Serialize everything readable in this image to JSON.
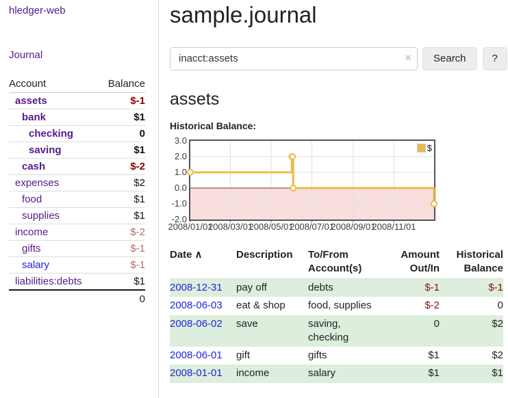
{
  "colors": {
    "link_purple": "#551a8b",
    "link_blue": "#2222dd",
    "negative_strong": "#8b0000",
    "negative_light": "#b56a6a",
    "stripe_green": "#ddeedd",
    "chart_gold": "#e8bc4a",
    "chart_negative_fill": "#f9dede",
    "chart_zero_line": "#992222",
    "chart_border": "#545454"
  },
  "sidebar": {
    "brand": "hledger-web",
    "journal_label": "Journal",
    "accounts_table": {
      "headers": [
        "Account",
        "Balance"
      ],
      "rows": [
        {
          "account": "assets",
          "depth": 1,
          "bold": true,
          "balance": "$-1",
          "balance_style": "neg-strong",
          "link_color": "purple"
        },
        {
          "account": "bank",
          "depth": 2,
          "bold": true,
          "balance": "$1",
          "balance_style": "pos",
          "link_color": "purple"
        },
        {
          "account": "checking",
          "depth": 3,
          "bold": true,
          "balance": "0",
          "balance_style": "pos",
          "link_color": "purple"
        },
        {
          "account": "saving",
          "depth": 3,
          "bold": true,
          "balance": "$1",
          "balance_style": "pos",
          "link_color": "purple"
        },
        {
          "account": "cash",
          "depth": 2,
          "bold": true,
          "balance": "$-2",
          "balance_style": "neg-strong",
          "link_color": "purple"
        },
        {
          "account": "expenses",
          "depth": 1,
          "bold": false,
          "balance": "$2",
          "balance_style": "pos",
          "link_color": "purple"
        },
        {
          "account": "food",
          "depth": 2,
          "bold": false,
          "balance": "$1",
          "balance_style": "pos",
          "link_color": "purple"
        },
        {
          "account": "supplies",
          "depth": 2,
          "bold": false,
          "balance": "$1",
          "balance_style": "pos",
          "link_color": "purple"
        },
        {
          "account": "income",
          "depth": 1,
          "bold": false,
          "balance": "$-2",
          "balance_style": "neg",
          "link_color": "purple"
        },
        {
          "account": "gifts",
          "depth": 2,
          "bold": false,
          "balance": "$-1",
          "balance_style": "neg",
          "link_color": "purple"
        },
        {
          "account": "salary",
          "depth": 2,
          "bold": false,
          "balance": "$-1",
          "balance_style": "neg",
          "link_color": "blue"
        },
        {
          "account": "liabilities:debts",
          "depth": 1,
          "bold": false,
          "balance": "$1",
          "balance_style": "pos",
          "link_color": "purple"
        }
      ],
      "total": "0"
    }
  },
  "main": {
    "title": "sample.journal",
    "search": {
      "value": "inacct:assets",
      "clear_icon": "×",
      "button_label": "Search",
      "help_label": "?"
    },
    "account_heading": "assets",
    "chart_label": "Historical Balance:"
  },
  "chart_data": {
    "type": "line",
    "step": true,
    "legend": "$",
    "x_range": [
      "2008-01-01",
      "2008-12-31"
    ],
    "ylim": [
      -2,
      3
    ],
    "y_ticks": [
      "3.0",
      "2.0",
      "1.0",
      "0.0",
      "-1.0",
      "-2.0"
    ],
    "x_ticks": [
      {
        "label": "2008/01/01",
        "date": "2008-01-01"
      },
      {
        "label": "2008/03/01",
        "date": "2008-03-01"
      },
      {
        "label": "2008/05/01",
        "date": "2008-05-01"
      },
      {
        "label": "2008/07/01",
        "date": "2008-07-01"
      },
      {
        "label": "2008/09/01",
        "date": "2008-09-01"
      },
      {
        "label": "2008/11/01",
        "date": "2008-11-01"
      }
    ],
    "series": [
      {
        "name": "$",
        "points": [
          {
            "date": "2008-01-01",
            "value": 1
          },
          {
            "date": "2008-06-01",
            "value": 2
          },
          {
            "date": "2008-06-02",
            "value": 2
          },
          {
            "date": "2008-06-03",
            "value": 0
          },
          {
            "date": "2008-12-31",
            "value": -1
          }
        ]
      }
    ],
    "grid": true,
    "negative_region_shaded": true,
    "legend_position": "top-right"
  },
  "register": {
    "headers": [
      "Date",
      "Description",
      "To/From Account(s)",
      "Amount Out/In",
      "Historical Balance"
    ],
    "sort_icon": "∧",
    "rows": [
      {
        "date": "2008-12-31",
        "description": "pay off",
        "accounts": "debts",
        "amount": "$-1",
        "amount_neg": true,
        "balance": "$-1",
        "balance_neg": true
      },
      {
        "date": "2008-06-03",
        "description": "eat & shop",
        "accounts": "food, supplies",
        "amount": "$-2",
        "amount_neg": true,
        "balance": "0",
        "balance_neg": false
      },
      {
        "date": "2008-06-02",
        "description": "save",
        "accounts": "saving, checking",
        "amount": "0",
        "amount_neg": false,
        "balance": "$2",
        "balance_neg": false
      },
      {
        "date": "2008-06-01",
        "description": "gift",
        "accounts": "gifts",
        "amount": "$1",
        "amount_neg": false,
        "balance": "$2",
        "balance_neg": false
      },
      {
        "date": "2008-01-01",
        "description": "income",
        "accounts": "salary",
        "amount": "$1",
        "amount_neg": false,
        "balance": "$1",
        "balance_neg": false
      }
    ]
  }
}
